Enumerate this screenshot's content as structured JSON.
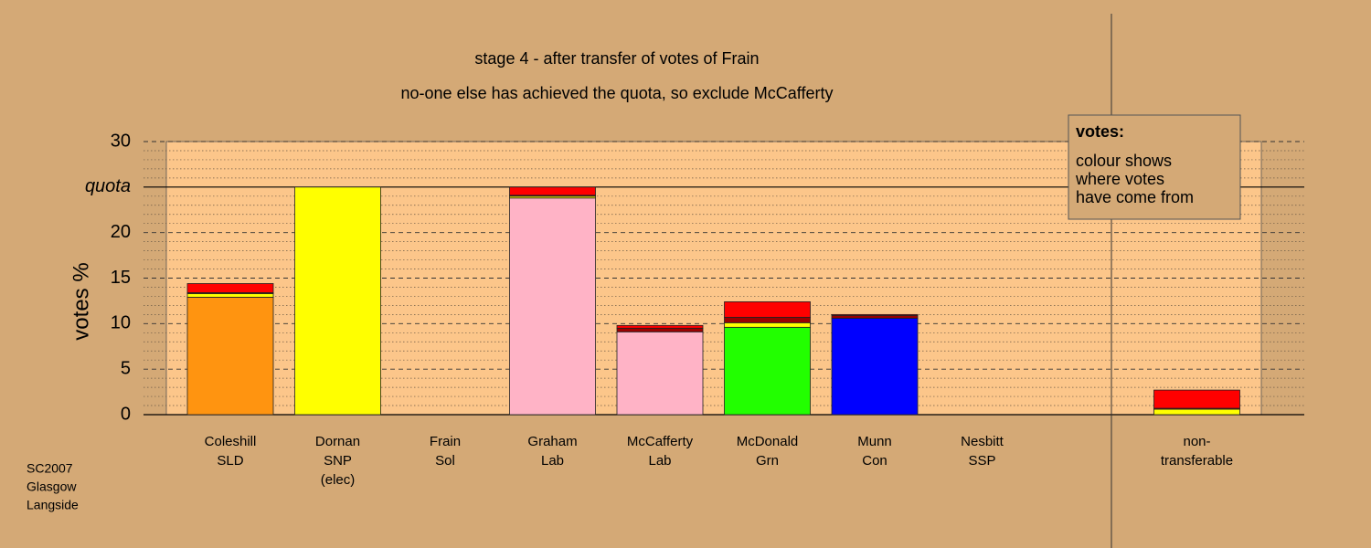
{
  "chart_data": {
    "type": "stacked_bar",
    "title": "stage 4 - after transfer of votes of Frain",
    "subtitle": "no-one else has achieved the quota, so exclude McCafferty",
    "y_label": "votes %",
    "categories": [
      [
        "Coleshill",
        "SLD"
      ],
      [
        "Dornan",
        "SNP",
        "(elec)"
      ],
      [
        "Frain",
        "Sol"
      ],
      [
        "Graham",
        "Lab"
      ],
      [
        "McCafferty",
        "Lab"
      ],
      [
        "McDonald",
        "Grn"
      ],
      [
        "Munn",
        "Con"
      ],
      [
        "Nesbitt",
        "SSP"
      ],
      null,
      [
        "non-",
        "transferable"
      ]
    ],
    "series": [
      {
        "colors": [
          "#ff9410",
          "#ffff00",
          null,
          "#ffb3c6",
          "#ffb3c6",
          "#22ff00",
          "#0000ff",
          null,
          null,
          null
        ],
        "values": [
          12.9,
          25,
          0,
          23.8,
          9.1,
          9.6,
          10.6,
          0,
          null,
          0
        ]
      },
      {
        "color": "#ffff00",
        "values": [
          0.4,
          0,
          0,
          0.2,
          0,
          0.5,
          0,
          0,
          null,
          0.6
        ]
      },
      {
        "color": "#9b0000",
        "values": [
          0.1,
          0,
          0,
          0.1,
          0.4,
          0.6,
          0.3,
          0,
          null,
          0.1
        ]
      },
      {
        "color": "#ff0000",
        "values": [
          1.0,
          0,
          0,
          0.9,
          0.3,
          1.7,
          0.1,
          0,
          null,
          2.0
        ]
      }
    ],
    "ylim": [
      0,
      30
    ],
    "yticks": [
      0,
      5,
      10,
      15,
      20,
      {
        "value": 25,
        "label": "quota"
      },
      30
    ],
    "minor_yticks": [
      1,
      2,
      3,
      4,
      6,
      7,
      8,
      9,
      11,
      12,
      13,
      14,
      16,
      17,
      18,
      19,
      21,
      22,
      23,
      24,
      26,
      27,
      28,
      29
    ],
    "grid": true,
    "legend": {
      "title": "votes:",
      "lines": [
        "colour shows",
        "where votes",
        "have come from"
      ]
    },
    "footnote": [
      "SC2007",
      "Glasgow",
      "Langside"
    ]
  }
}
